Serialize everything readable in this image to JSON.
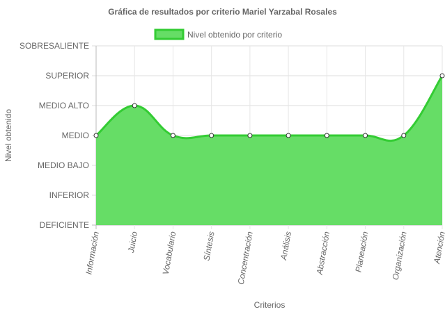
{
  "chart_data": {
    "type": "area",
    "title": "Gráfica de resultados por criterio Mariel Yarzabal Rosales",
    "xlabel": "Criterios",
    "ylabel": "Nivel obtenido",
    "categories": [
      "Información",
      "Juicio",
      "Vocabulario",
      "Síntesis",
      "Concentración",
      "Análisis",
      "Abstracción",
      "Planeación",
      "Organización",
      "Atención"
    ],
    "y_levels": [
      "DEFICIENTE",
      "INFERIOR",
      "MEDIO BAJO",
      "MEDIO",
      "MEDIO ALTO",
      "SUPERIOR",
      "SOBRESALIENTE"
    ],
    "ylim": [
      0,
      6
    ],
    "series": [
      {
        "name": "Nivel obtenido por criterio",
        "values": [
          3,
          4,
          3,
          3,
          3,
          3,
          3,
          3,
          3,
          5
        ],
        "line_color": "#33cc33",
        "fill_color": "#66dd66"
      }
    ],
    "grid": true,
    "legend_position": "top"
  }
}
